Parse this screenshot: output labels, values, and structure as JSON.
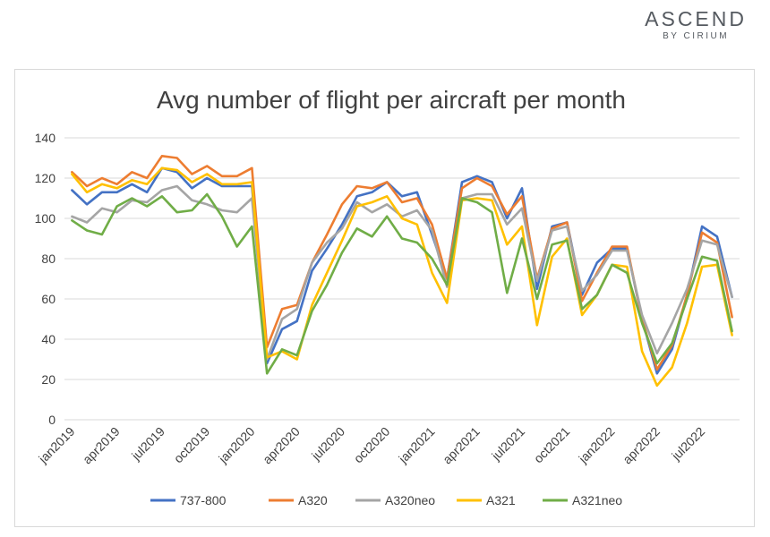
{
  "brand": {
    "name": "ASCEND",
    "sub": "BY CIRIUM"
  },
  "chart_data": {
    "type": "line",
    "title": "Avg number of flight per aircraft per month",
    "xlabel": "",
    "ylabel": "",
    "ylim": [
      0,
      140
    ],
    "yticks": [
      0,
      20,
      40,
      60,
      80,
      100,
      120,
      140
    ],
    "grid": true,
    "legend_position": "bottom",
    "x": [
      "jan2019",
      "feb2019",
      "mar2019",
      "apr2019",
      "may2019",
      "jun2019",
      "jul2019",
      "aug2019",
      "sep2019",
      "oct2019",
      "nov2019",
      "dec2019",
      "jan2020",
      "feb2020",
      "mar2020",
      "apr2020",
      "may2020",
      "jun2020",
      "jul2020",
      "aug2020",
      "sep2020",
      "oct2020",
      "nov2020",
      "dec2020",
      "jan2021",
      "feb2021",
      "mar2021",
      "apr2021",
      "may2021",
      "jun2021",
      "jul2021",
      "aug2021",
      "sep2021",
      "oct2021",
      "nov2021",
      "dec2021",
      "jan2022",
      "feb2022",
      "mar2022",
      "apr2022",
      "may2022",
      "jun2022",
      "jul2022",
      "aug2022",
      "sep2022"
    ],
    "x_tick_labels": [
      "jan2019",
      "apr2019",
      "jul2019",
      "oct2019",
      "jan2020",
      "apr2020",
      "jul2020",
      "oct2020",
      "jan2021",
      "apr2021",
      "jul2021",
      "oct2021",
      "jan2022",
      "apr2022",
      "jul2022"
    ],
    "series": [
      {
        "name": "737-800",
        "color": "#4472c4",
        "values": [
          114,
          107,
          113,
          113,
          117,
          113,
          125,
          123,
          115,
          120,
          116,
          116,
          116,
          28,
          45,
          49,
          74,
          85,
          97,
          111,
          113,
          118,
          111,
          113,
          92,
          70,
          118,
          121,
          118,
          100,
          115,
          65,
          96,
          98,
          62,
          78,
          85,
          85,
          50,
          23,
          35,
          62,
          96,
          91,
          61
        ]
      },
      {
        "name": "A320",
        "color": "#ed7d31",
        "values": [
          123,
          116,
          120,
          117,
          123,
          120,
          131,
          130,
          122,
          126,
          121,
          121,
          125,
          36,
          55,
          57,
          78,
          92,
          107,
          116,
          115,
          118,
          108,
          110,
          97,
          70,
          115,
          120,
          116,
          102,
          111,
          70,
          95,
          98,
          59,
          73,
          86,
          86,
          50,
          25,
          37,
          62,
          93,
          88,
          51
        ]
      },
      {
        "name": "A320neo",
        "color": "#a5a5a5",
        "values": [
          101,
          98,
          105,
          103,
          109,
          108,
          114,
          116,
          109,
          107,
          104,
          103,
          110,
          30,
          50,
          55,
          78,
          88,
          95,
          108,
          103,
          107,
          101,
          104,
          94,
          66,
          110,
          112,
          112,
          97,
          105,
          69,
          94,
          96,
          64,
          72,
          84,
          84,
          52,
          33,
          48,
          65,
          89,
          87,
          61
        ]
      },
      {
        "name": "A321",
        "color": "#ffc000",
        "values": [
          122,
          113,
          117,
          115,
          119,
          117,
          125,
          124,
          118,
          122,
          117,
          117,
          118,
          31,
          34,
          30,
          57,
          73,
          89,
          106,
          108,
          111,
          100,
          97,
          73,
          58,
          109,
          110,
          109,
          87,
          96,
          47,
          81,
          90,
          52,
          62,
          77,
          76,
          34,
          17,
          26,
          48,
          76,
          77,
          42
        ]
      },
      {
        "name": "A321neo",
        "color": "#70ad47",
        "values": [
          99,
          94,
          92,
          106,
          110,
          106,
          111,
          103,
          104,
          112,
          101,
          86,
          96,
          23,
          35,
          32,
          54,
          67,
          83,
          95,
          91,
          101,
          90,
          88,
          80,
          67,
          110,
          108,
          103,
          63,
          90,
          60,
          87,
          89,
          55,
          62,
          77,
          73,
          48,
          28,
          38,
          60,
          81,
          79,
          44
        ]
      }
    ]
  }
}
